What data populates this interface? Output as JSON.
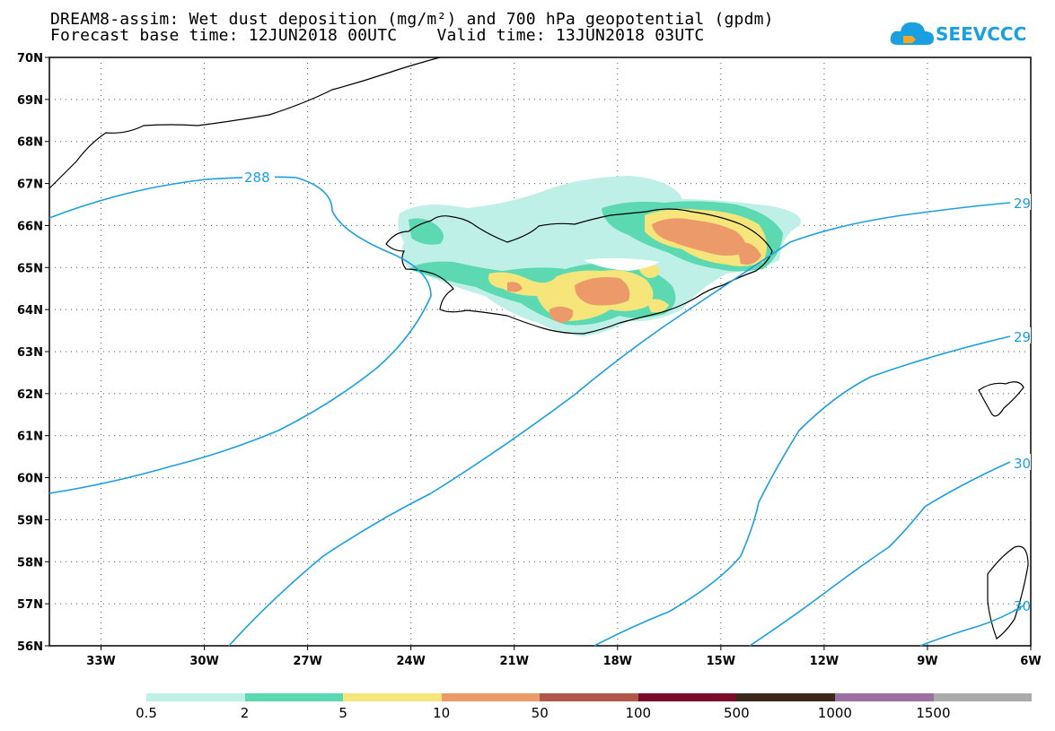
{
  "title": {
    "line1": "DREAM8-assim: Wet dust deposition (mg/m²) and 700 hPa geopotential (gpdm)",
    "line2": "Forecast base time: 12JUN2018 00UTC    Valid time: 13JUN2018 03UTC"
  },
  "logo": {
    "text": "SEEVCCC",
    "icon": "cloud-icon"
  },
  "map": {
    "lat_labels": [
      "70N",
      "69N",
      "68N",
      "67N",
      "66N",
      "65N",
      "64N",
      "63N",
      "62N",
      "61N",
      "60N",
      "59N",
      "58N",
      "57N",
      "56N"
    ],
    "lon_labels": [
      "33W",
      "30W",
      "27W",
      "24W",
      "21W",
      "18W",
      "15W",
      "12W",
      "9W",
      "6W"
    ],
    "lat_range": [
      56,
      70
    ],
    "lon_range": [
      -34.5,
      -6
    ],
    "grid": "dotted",
    "contours": [
      {
        "value": "288",
        "label": "288"
      },
      {
        "value": "29x",
        "label": "29"
      },
      {
        "value": "29x",
        "label": "29"
      },
      {
        "value": "30x",
        "label": "30"
      },
      {
        "value": "30x",
        "label": "30"
      }
    ],
    "contour_color": "#1a9fe0"
  },
  "legend": {
    "labels": [
      "0.5",
      "2",
      "5",
      "10",
      "50",
      "100",
      "500",
      "1000",
      "1500"
    ],
    "colors": [
      "#bff0e8",
      "#5cd9b0",
      "#f5e57a",
      "#ec9a6a",
      "#b0574a",
      "#7a0b2a",
      "#3b2a1c",
      "#9c6fa3",
      "#aaaaaa"
    ]
  }
}
